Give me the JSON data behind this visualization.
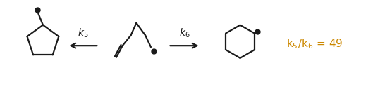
{
  "bg_color": "#ffffff",
  "text_color": "#1a1a1a",
  "arrow_color": "#1a1a1a",
  "k5_k6_color": "#cc8800",
  "fig_width": 5.29,
  "fig_height": 1.47,
  "dpi": 100
}
